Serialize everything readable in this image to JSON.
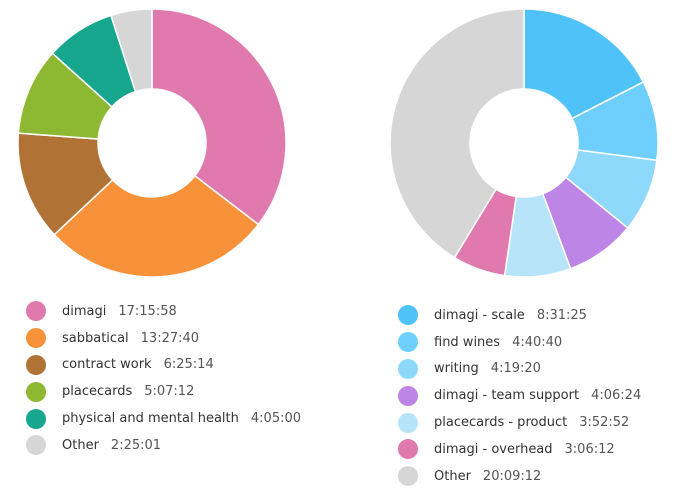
{
  "chart_data": [
    {
      "type": "pie",
      "donut": true,
      "legend_position": "bottom",
      "slices": [
        {
          "label": "dimagi",
          "value_text": "17:15:58",
          "seconds": 62158,
          "color": "#E07AAE"
        },
        {
          "label": "sabbatical",
          "value_text": "13:27:40",
          "seconds": 48460,
          "color": "#F7923B"
        },
        {
          "label": "contract work",
          "value_text": "6:25:14",
          "seconds": 23114,
          "color": "#B07235"
        },
        {
          "label": "placecards",
          "value_text": "5:07:12",
          "seconds": 18432,
          "color": "#8DB832"
        },
        {
          "label": "physical and mental health",
          "value_text": "4:05:00",
          "seconds": 14700,
          "color": "#16A78E"
        },
        {
          "label": "Other",
          "value_text": "2:25:01",
          "seconds": 8701,
          "color": "#D6D6D6"
        }
      ]
    },
    {
      "type": "pie",
      "donut": true,
      "legend_position": "bottom",
      "slices": [
        {
          "label": "dimagi - scale",
          "value_text": "8:31:25",
          "seconds": 30685,
          "color": "#4FC3F7"
        },
        {
          "label": "find wines",
          "value_text": "4:40:40",
          "seconds": 16840,
          "color": "#6FCFFC"
        },
        {
          "label": "writing",
          "value_text": "4:19:20",
          "seconds": 15560,
          "color": "#8ED8FB"
        },
        {
          "label": "dimagi - team support",
          "value_text": "4:06:24",
          "seconds": 14784,
          "color": "#BC85E6"
        },
        {
          "label": "placecards - product",
          "value_text": "3:52:52",
          "seconds": 13972,
          "color": "#B8E4FA"
        },
        {
          "label": "dimagi - overhead",
          "value_text": "3:06:12",
          "seconds": 11172,
          "color": "#E07AAE"
        },
        {
          "label": "Other",
          "value_text": "20:09:12",
          "seconds": 72552,
          "color": "#D6D6D6"
        }
      ]
    }
  ]
}
